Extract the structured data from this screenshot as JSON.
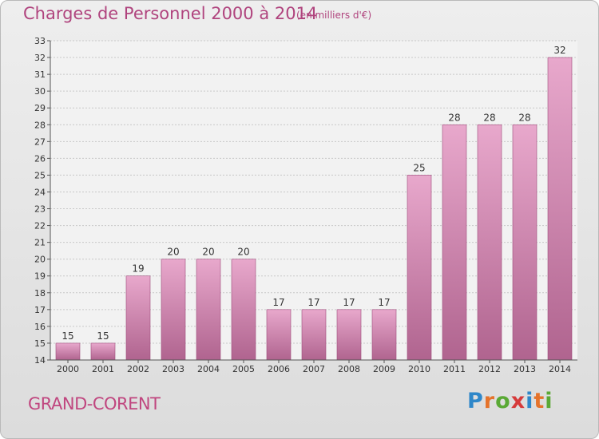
{
  "header": {
    "title": "Charges de Personnel 2000 à 2014",
    "subtitle": "(en milliers d'€)"
  },
  "footer": {
    "commune": "GRAND-CORENT",
    "brand_letters": [
      "P",
      "r",
      "o",
      "x",
      "i",
      "t",
      "i"
    ],
    "brand_colors": [
      "#2f87c9",
      "#e5732b",
      "#5aa935",
      "#d63a3a",
      "#2f87c9",
      "#e5732b",
      "#5aa935"
    ]
  },
  "colors": {
    "bar_top": "#e8a8cc",
    "bar_bottom": "#b0648f",
    "bar_stroke": "#9e4e7c",
    "title": "#b0447e"
  },
  "chart_data": {
    "type": "bar",
    "title": "Charges de Personnel 2000 à 2014",
    "subtitle": "(en milliers d'€)",
    "categories": [
      "2000",
      "2001",
      "2002",
      "2003",
      "2004",
      "2005",
      "2006",
      "2007",
      "2008",
      "2009",
      "2010",
      "2011",
      "2012",
      "2013",
      "2014"
    ],
    "values": [
      15,
      15,
      19,
      20,
      20,
      20,
      17,
      17,
      17,
      17,
      25,
      28,
      28,
      28,
      32
    ],
    "ylim": [
      14,
      33
    ],
    "yticks": [
      14,
      15,
      16,
      17,
      18,
      19,
      20,
      21,
      22,
      23,
      24,
      25,
      26,
      27,
      28,
      29,
      30,
      31,
      32,
      33
    ],
    "grid": true,
    "legend": "none"
  }
}
